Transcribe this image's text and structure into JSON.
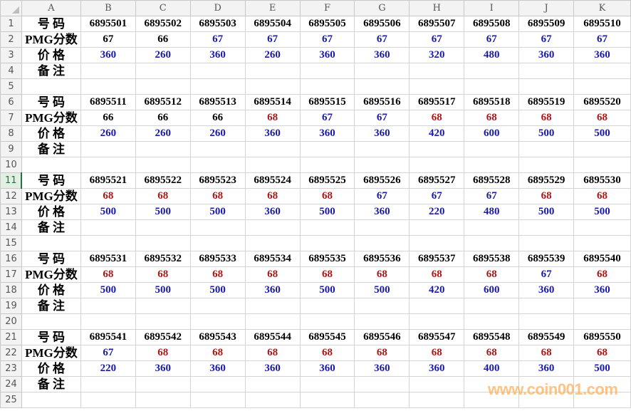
{
  "columns": [
    "A",
    "B",
    "C",
    "D",
    "E",
    "F",
    "G",
    "H",
    "I",
    "J",
    "K"
  ],
  "row_labels": {
    "number": "号 码",
    "score": "PMG分数",
    "price": "价 格",
    "note": "备 注"
  },
  "selected_row": 11,
  "colors": {
    "k": "#000000",
    "b": "#1a1aaa",
    "r": "#b01515"
  },
  "blocks": [
    {
      "numbers": [
        "6895501",
        "6895502",
        "6895503",
        "6895504",
        "6895505",
        "6895506",
        "6895507",
        "6895508",
        "6895509",
        "6895510"
      ],
      "scores": [
        "67",
        "66",
        "67",
        "67",
        "67",
        "67",
        "67",
        "67",
        "67",
        "67"
      ],
      "score_colors": [
        "k",
        "k",
        "b",
        "b",
        "b",
        "b",
        "b",
        "b",
        "b",
        "b"
      ],
      "prices": [
        "360",
        "260",
        "360",
        "260",
        "360",
        "360",
        "320",
        "480",
        "360",
        "360"
      ]
    },
    {
      "numbers": [
        "6895511",
        "6895512",
        "6895513",
        "6895514",
        "6895515",
        "6895516",
        "6895517",
        "6895518",
        "6895519",
        "6895520"
      ],
      "scores": [
        "66",
        "66",
        "66",
        "68",
        "67",
        "67",
        "68",
        "68",
        "68",
        "68"
      ],
      "score_colors": [
        "k",
        "k",
        "k",
        "r",
        "b",
        "b",
        "r",
        "r",
        "r",
        "r"
      ],
      "prices": [
        "260",
        "260",
        "260",
        "360",
        "360",
        "360",
        "420",
        "600",
        "500",
        "500"
      ]
    },
    {
      "numbers": [
        "6895521",
        "6895522",
        "6895523",
        "6895524",
        "6895525",
        "6895526",
        "6895527",
        "6895528",
        "6895529",
        "6895530"
      ],
      "scores": [
        "68",
        "68",
        "68",
        "68",
        "68",
        "67",
        "67",
        "67",
        "68",
        "68"
      ],
      "score_colors": [
        "r",
        "r",
        "r",
        "r",
        "r",
        "b",
        "b",
        "b",
        "r",
        "r"
      ],
      "prices": [
        "500",
        "500",
        "500",
        "360",
        "500",
        "360",
        "220",
        "480",
        "500",
        "500"
      ]
    },
    {
      "numbers": [
        "6895531",
        "6895532",
        "6895533",
        "6895534",
        "6895535",
        "6895536",
        "6895537",
        "6895538",
        "6895539",
        "6895540"
      ],
      "scores": [
        "68",
        "68",
        "68",
        "68",
        "68",
        "68",
        "68",
        "68",
        "67",
        "68"
      ],
      "score_colors": [
        "r",
        "r",
        "r",
        "r",
        "r",
        "r",
        "r",
        "r",
        "b",
        "r"
      ],
      "prices": [
        "500",
        "500",
        "500",
        "360",
        "500",
        "500",
        "420",
        "600",
        "360",
        "360"
      ]
    },
    {
      "numbers": [
        "6895541",
        "6895542",
        "6895543",
        "6895544",
        "6895545",
        "6895546",
        "6895547",
        "6895548",
        "6895549",
        "6895550"
      ],
      "scores": [
        "67",
        "68",
        "68",
        "68",
        "68",
        "68",
        "68",
        "68",
        "68",
        "68"
      ],
      "score_colors": [
        "b",
        "r",
        "r",
        "r",
        "r",
        "r",
        "r",
        "r",
        "r",
        "r"
      ],
      "prices": [
        "220",
        "360",
        "360",
        "360",
        "360",
        "360",
        "360",
        "400",
        "360",
        "500"
      ]
    }
  ],
  "watermark": "www.coin001.com"
}
